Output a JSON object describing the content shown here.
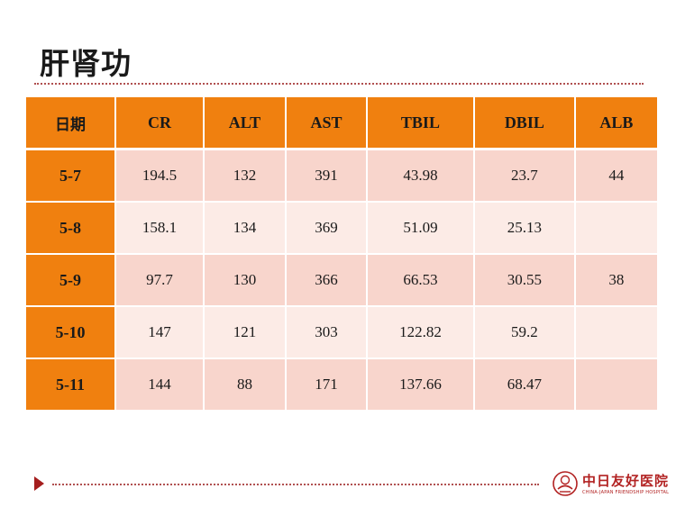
{
  "title": "肝肾功",
  "table": {
    "headers": [
      "日期",
      "CR",
      "ALT",
      "AST",
      "TBIL",
      "DBIL",
      "ALB"
    ],
    "rows": [
      {
        "date": "5-7",
        "cr": "194.5",
        "alt": "132",
        "ast": "391",
        "tbil": "43.98",
        "dbil": "23.7",
        "alb": "44"
      },
      {
        "date": "5-8",
        "cr": "158.1",
        "alt": "134",
        "ast": "369",
        "tbil": "51.09",
        "dbil": "25.13",
        "alb": ""
      },
      {
        "date": "5-9",
        "cr": "97.7",
        "alt": "130",
        "ast": "366",
        "tbil": "66.53",
        "dbil": "30.55",
        "alb": "38"
      },
      {
        "date": "5-10",
        "cr": "147",
        "alt": "121",
        "ast": "303",
        "tbil": "122.82",
        "dbil": "59.2",
        "alb": ""
      },
      {
        "date": "5-11",
        "cr": "144",
        "alt": "88",
        "ast": "171",
        "tbil": "137.66",
        "dbil": "68.47",
        "alb": ""
      }
    ]
  },
  "logo": {
    "name_cn": "中日友好医院",
    "name_en": "CHINA-JAPAN FRIENDSHIP HOSPITAL"
  },
  "colors": {
    "header_orange": "#f0800f",
    "row_dark": "#f8d5cc",
    "row_light": "#fcebe6",
    "accent_red": "#b22222"
  }
}
